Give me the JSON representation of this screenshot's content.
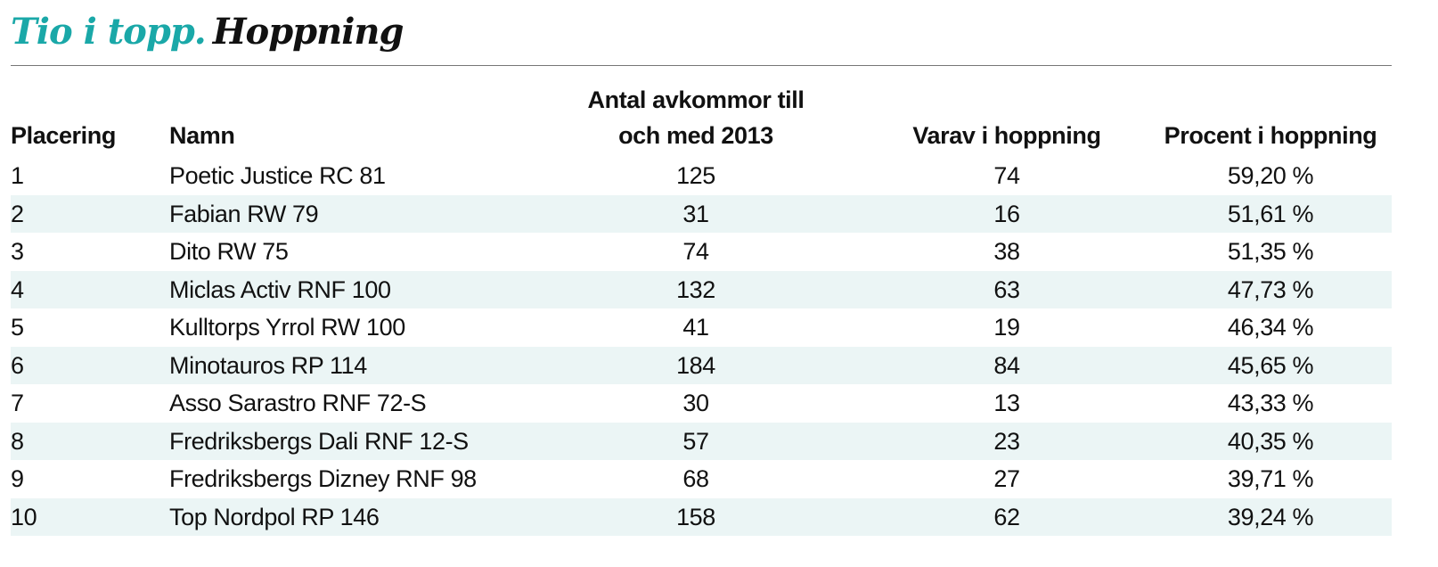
{
  "header": {
    "kicker": "Tio i topp.",
    "title": "Hoppning"
  },
  "table": {
    "columns": {
      "placement": "Placering",
      "name": "Namn",
      "offspring_line1": "Antal avkommor till",
      "offspring_line2": "och med 2013",
      "jumping": "Varav i hoppning",
      "percent": "Procent i hoppning"
    },
    "rows": [
      {
        "rank": "1",
        "name": "Poetic Justice RC 81",
        "offspring": "125",
        "jumping": "74",
        "percent": "59,20 %"
      },
      {
        "rank": "2",
        "name": "Fabian RW 79",
        "offspring": "31",
        "jumping": "16",
        "percent": "51,61 %"
      },
      {
        "rank": "3",
        "name": "Dito RW 75",
        "offspring": "74",
        "jumping": "38",
        "percent": "51,35 %"
      },
      {
        "rank": "4",
        "name": "Miclas Activ RNF 100",
        "offspring": "132",
        "jumping": "63",
        "percent": "47,73 %"
      },
      {
        "rank": "5",
        "name": "Kulltorps Yrrol RW 100",
        "offspring": "41",
        "jumping": "19",
        "percent": "46,34 %"
      },
      {
        "rank": "6",
        "name": "Minotauros RP 114",
        "offspring": "184",
        "jumping": "84",
        "percent": "45,65 %"
      },
      {
        "rank": "7",
        "name": "Asso Sarastro RNF 72-S",
        "offspring": "30",
        "jumping": "13",
        "percent": "43,33 %"
      },
      {
        "rank": "8",
        "name": "Fredriksbergs Dali RNF 12-S",
        "offspring": "57",
        "jumping": "23",
        "percent": "40,35 %"
      },
      {
        "rank": "9",
        "name": "Fredriksbergs Dizney RNF 98",
        "offspring": "68",
        "jumping": "27",
        "percent": "39,71 %"
      },
      {
        "rank": "10",
        "name": "Top Nordpol RP 146",
        "offspring": "158",
        "jumping": "62",
        "percent": "39,24 %"
      }
    ]
  },
  "colors": {
    "kicker": "#1aa8a8",
    "row_stripe": "#ebf5f5",
    "rule": "#777777"
  }
}
